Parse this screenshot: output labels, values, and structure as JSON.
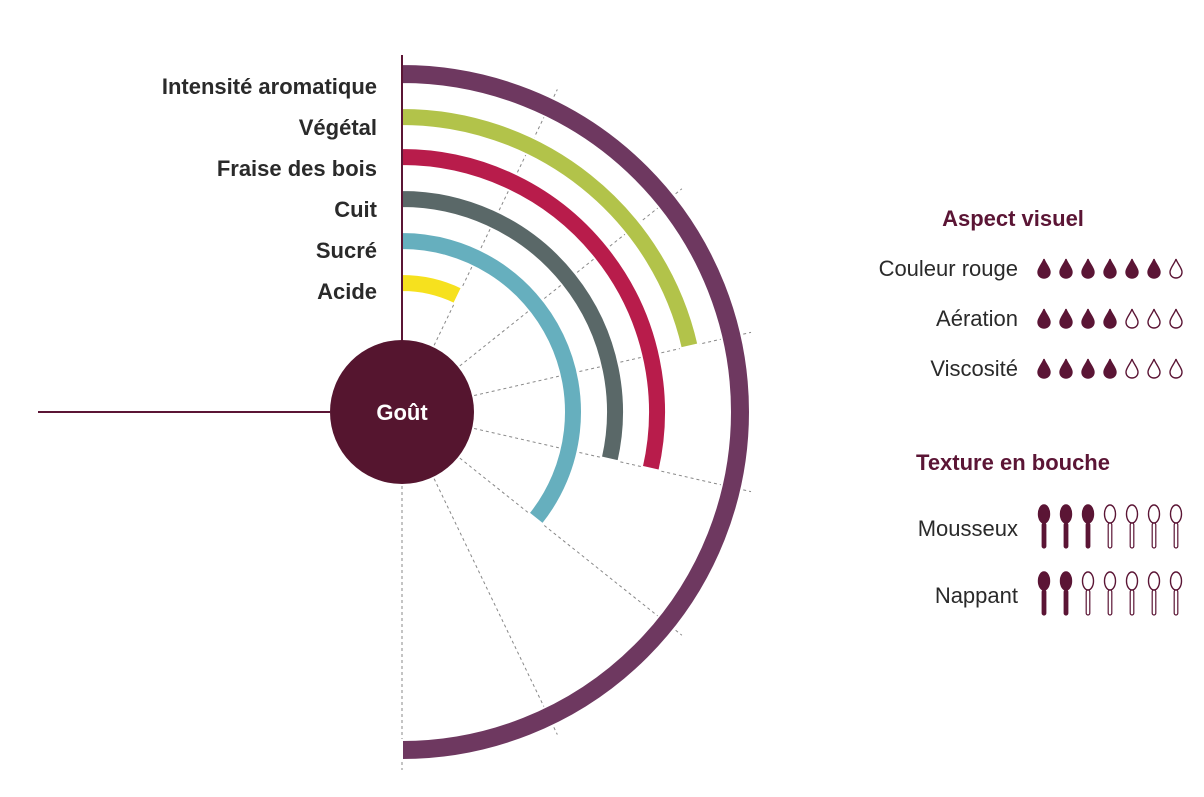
{
  "chart_data": {
    "type": "radial-bar",
    "center_label": "Goût",
    "scale_max": 7,
    "categories": [
      "Intensité aromatique",
      "Végétal",
      "Fraise des bois",
      "Cuit",
      "Sucré",
      "Acide"
    ],
    "values": [
      7,
      3,
      4,
      4,
      5,
      1
    ],
    "colors": [
      "#6e3860",
      "#b2c34a",
      "#b81c4b",
      "#5a6868",
      "#66afbe",
      "#f6e11e"
    ]
  },
  "aspect_visuel": {
    "title": "Aspect visuel",
    "max": 7,
    "rows": [
      {
        "label": "Couleur rouge",
        "value": 6
      },
      {
        "label": "Aération",
        "value": 4
      },
      {
        "label": "Viscosité",
        "value": 4
      }
    ]
  },
  "texture": {
    "title": "Texture en bouche",
    "max": 7,
    "rows": [
      {
        "label": "Mousseux",
        "value": 3
      },
      {
        "label": "Nappant",
        "value": 2
      }
    ]
  },
  "colors": {
    "accent": "#5b1535",
    "text": "#2a2a2a",
    "guide": "#888888"
  }
}
